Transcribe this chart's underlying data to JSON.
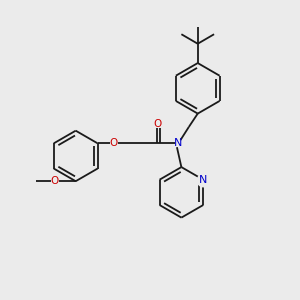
{
  "bg_color": "#ebebeb",
  "bond_color": "#1a1a1a",
  "o_color": "#cc0000",
  "n_color": "#0000cc",
  "lw": 1.3,
  "figsize": [
    3.0,
    3.0
  ],
  "dpi": 100,
  "xlim": [
    0,
    10
  ],
  "ylim": [
    0,
    10
  ]
}
